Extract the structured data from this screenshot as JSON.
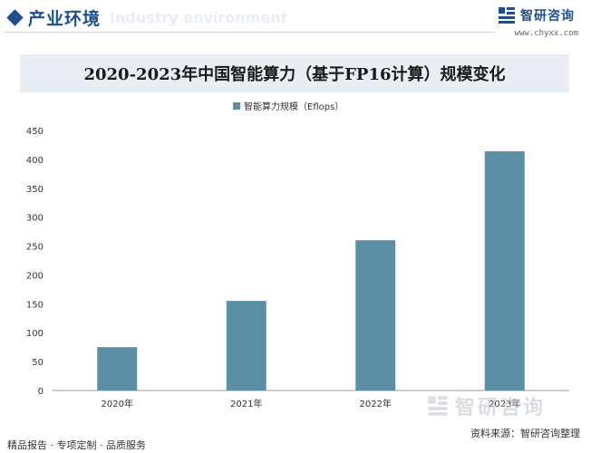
{
  "header": {
    "section_title": "产业环境",
    "section_subtitle": "Industry environment",
    "brand_name": "智研咨询",
    "brand_url": "www.chyxx.com"
  },
  "chart_title": "2020-2023年中国智能算力（基于FP16计算）规模变化",
  "chart_data": {
    "type": "bar",
    "title": "2020-2023年中国智能算力（基于FP16计算）规模变化",
    "categories": [
      "2020年",
      "2021年",
      "2022年",
      "2023年"
    ],
    "series": [
      {
        "name": "智能算力规模（Eflops）",
        "values": [
          75,
          155,
          260,
          414
        ]
      }
    ],
    "xlabel": "",
    "ylabel": "",
    "ylim": [
      0,
      450
    ],
    "yticks": [
      0,
      50,
      100,
      150,
      200,
      250,
      300,
      350,
      400,
      450
    ],
    "legend_position": "top-center",
    "grid": false,
    "colors": {
      "bar": "#5b8fa6"
    }
  },
  "footer": {
    "left_text": "精品报告 · 专项定制 · 品质服务",
    "source_text": "资料来源：智研咨询整理",
    "watermark_text": "智研咨询"
  }
}
